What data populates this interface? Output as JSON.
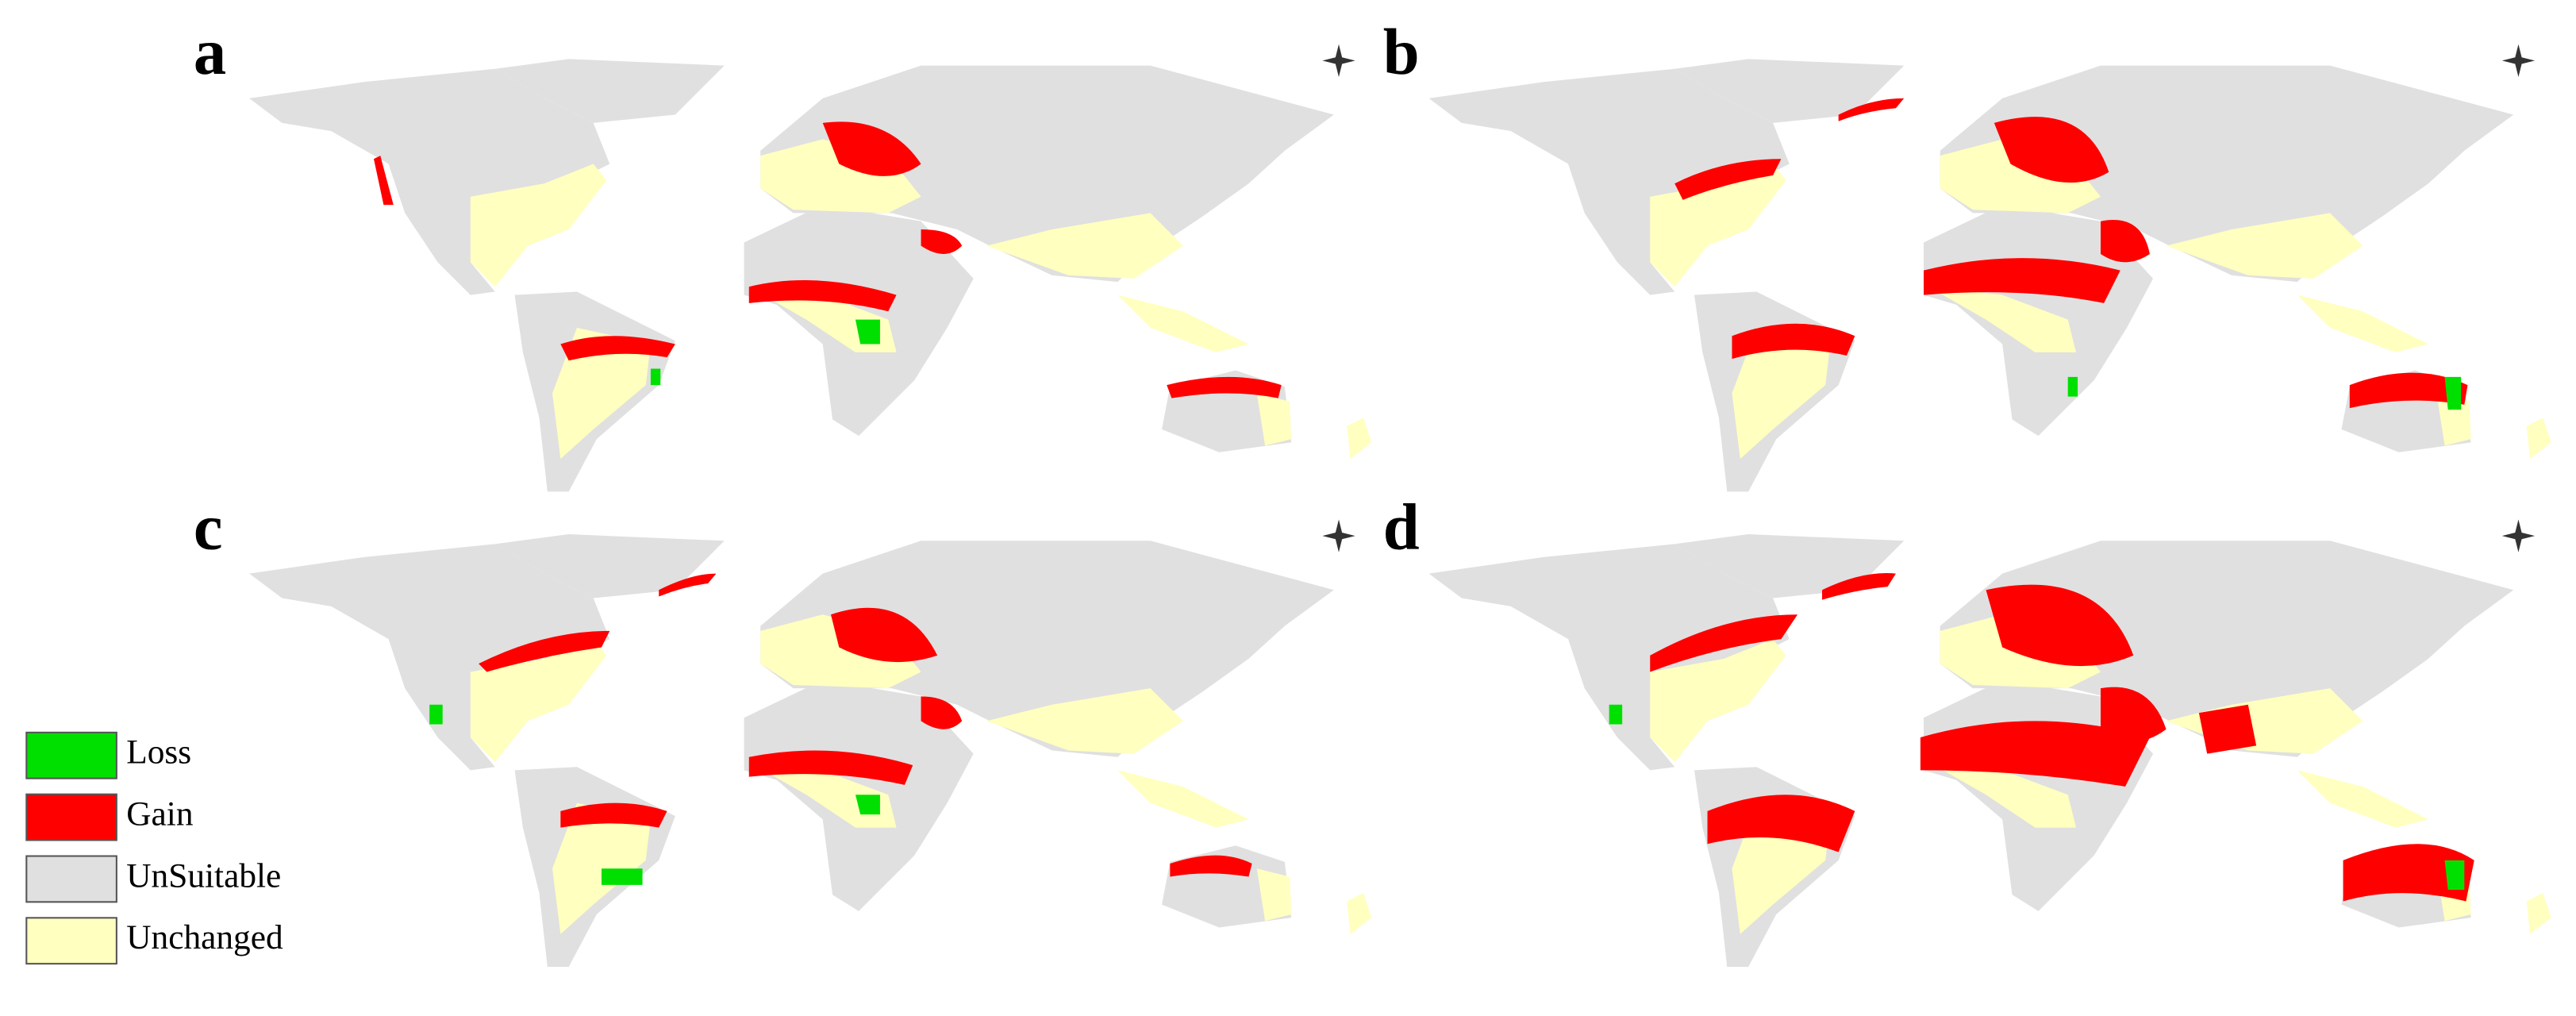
{
  "panels": [
    {
      "label": "a"
    },
    {
      "label": "b"
    },
    {
      "label": "c"
    },
    {
      "label": "d"
    }
  ],
  "legend": [
    {
      "label": "Loss",
      "color": "#00e000"
    },
    {
      "label": "Gain",
      "color": "#ff0000"
    },
    {
      "label": "UnSuitable",
      "color": "#e0e0e0"
    },
    {
      "label": "Unchanged",
      "color": "#ffffc0"
    }
  ]
}
